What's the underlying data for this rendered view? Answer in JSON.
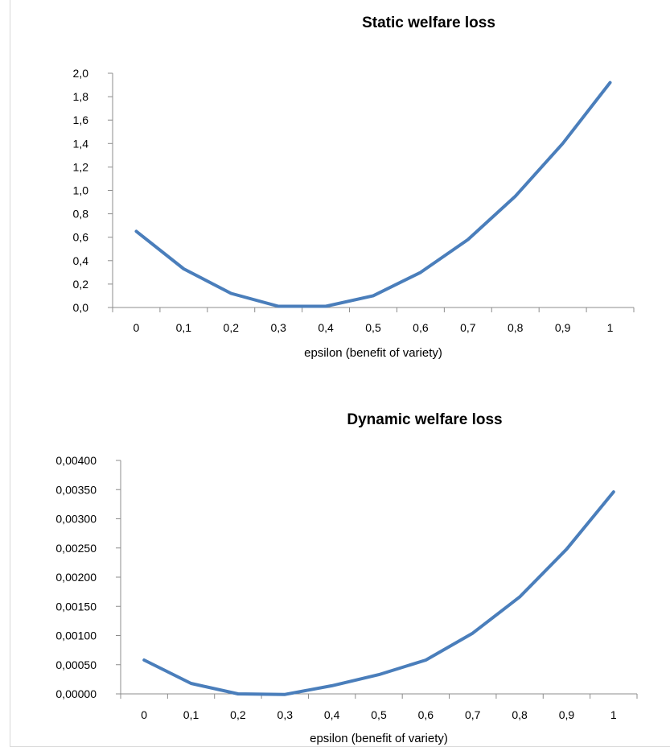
{
  "chart_data": [
    {
      "type": "line",
      "title": "Static welfare loss",
      "xlabel": "epsilon (benefit of variety)",
      "ylabel": "",
      "categories": [
        "0",
        "0,1",
        "0,2",
        "0,3",
        "0,4",
        "0,5",
        "0,6",
        "0,7",
        "0,8",
        "0,9",
        "1"
      ],
      "y_ticks": [
        "0,0",
        "0,2",
        "0,4",
        "0,6",
        "0,8",
        "1,0",
        "1,2",
        "1,4",
        "1,6",
        "1,8",
        "2,0"
      ],
      "ylim": [
        0,
        2.0
      ],
      "grid": false,
      "legend": "none",
      "color": "#4a7ebb",
      "series": [
        {
          "values": [
            0.65,
            0.33,
            0.12,
            0.01,
            0.01,
            0.1,
            0.3,
            0.58,
            0.95,
            1.4,
            1.92
          ]
        }
      ]
    },
    {
      "type": "line",
      "title": "Dynamic welfare loss",
      "xlabel": "epsilon (benefit of variety)",
      "ylabel": "",
      "categories": [
        "0",
        "0,1",
        "0,2",
        "0,3",
        "0,4",
        "0,5",
        "0,6",
        "0,7",
        "0,8",
        "0,9",
        "1"
      ],
      "y_ticks": [
        "0,00000",
        "0,00050",
        "0,00100",
        "0,00150",
        "0,00200",
        "0,00250",
        "0,00300",
        "0,00350",
        "0,00400"
      ],
      "ylim": [
        0,
        0.004
      ],
      "grid": false,
      "legend": "none",
      "color": "#4a7ebb",
      "series": [
        {
          "values": [
            0.00058,
            0.00018,
            0.0,
            -1e-05,
            0.00014,
            0.00033,
            0.00058,
            0.00104,
            0.00166,
            0.00248,
            0.00346
          ]
        }
      ]
    }
  ]
}
